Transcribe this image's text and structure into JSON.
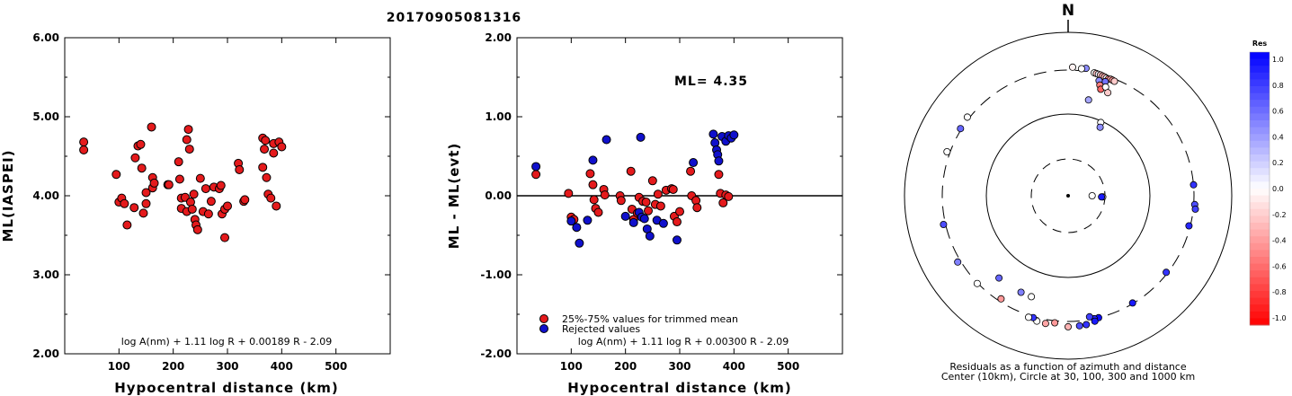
{
  "title": "20170905081316",
  "compass_label": "N",
  "panel1": {
    "ylabel": "ML(IASPEI)",
    "xlabel": "Hypocentral distance (km)",
    "formula": "log A(nm) + 1.11 log R + 0.00189 R - 2.09",
    "y_ticks": [
      "6.00",
      "5.00",
      "4.00",
      "3.00",
      "2.00"
    ],
    "x_ticks": [
      "100",
      "200",
      "300",
      "400",
      "500"
    ]
  },
  "panel2": {
    "ylabel": "ML - ML(evt)",
    "xlabel": "Hypocentral distance (km)",
    "ml_text": "ML= 4.35",
    "legend_trimmed": "25%-75% values for trimmed mean",
    "legend_rejected": "Rejected values",
    "formula": "log A(nm) + 1.11 log R + 0.00300 R - 2.09",
    "y_ticks": [
      "2.00",
      "1.00",
      "0.00",
      "-1.00",
      "-2.00"
    ],
    "x_ticks": [
      "100",
      "200",
      "300",
      "400",
      "500"
    ]
  },
  "panel3": {
    "caption1": "Residuals as a function of azimuth and distance",
    "caption2": "Center (10km), Circle at 30, 100, 300 and 1000 km",
    "colorbar_title": "Res",
    "colorbar_labels": [
      "1.0",
      "0.8",
      "0.6",
      "0.4",
      "0.2",
      "0.0",
      "-0.2",
      "-0.4",
      "-0.6",
      "-0.8",
      "-1.0"
    ]
  },
  "colors": {
    "trimmed": "#e41a1c",
    "rejected": "#1010cc"
  },
  "chart_data": [
    {
      "type": "scatter",
      "title": "20170905081316",
      "xlabel": "Hypocentral distance (km)",
      "ylabel": "ML(IASPEI)",
      "xlim": [
        0,
        600
      ],
      "ylim": [
        2.0,
        6.0
      ],
      "series": [
        {
          "x": [
            35,
            35,
            95,
            100,
            105,
            110,
            115,
            128,
            130,
            135,
            140,
            142,
            145,
            150,
            150,
            160,
            162,
            162,
            165,
            190,
            192,
            210,
            212,
            215,
            215,
            222,
            225,
            225,
            228,
            230,
            232,
            235,
            238,
            240,
            242,
            245,
            250,
            255,
            260,
            265,
            270,
            275,
            285,
            288,
            290,
            295,
            295,
            300,
            320,
            322,
            330,
            332,
            365,
            365,
            368,
            370,
            372,
            375,
            380,
            385,
            385,
            390,
            395,
            400
          ],
          "y": [
            4.68,
            4.58,
            4.27,
            3.92,
            3.97,
            3.9,
            3.63,
            3.85,
            4.48,
            4.63,
            4.65,
            4.35,
            3.78,
            4.04,
            3.9,
            4.87,
            4.1,
            4.23,
            4.16,
            4.14,
            4.14,
            4.43,
            4.21,
            3.84,
            3.97,
            3.98,
            3.8,
            4.71,
            4.84,
            4.59,
            3.92,
            3.83,
            4.02,
            3.7,
            3.63,
            3.57,
            4.22,
            3.8,
            4.09,
            3.77,
            3.93,
            4.11,
            4.09,
            4.13,
            3.77,
            3.47,
            3.83,
            3.87,
            4.41,
            4.33,
            3.93,
            3.95,
            4.73,
            4.36,
            4.59,
            4.7,
            4.23,
            4.02,
            3.97,
            4.54,
            4.66,
            3.87,
            4.68,
            4.62
          ]
        }
      ]
    },
    {
      "type": "scatter",
      "xlabel": "Hypocentral distance (km)",
      "ylabel": "ML - ML(evt)",
      "xlim": [
        0,
        600
      ],
      "ylim": [
        -2.0,
        2.0
      ],
      "series": [
        {
          "name": "25%-75% values for trimmed mean",
          "x": [
            35,
            95,
            100,
            105,
            135,
            140,
            142,
            145,
            150,
            160,
            162,
            190,
            192,
            210,
            212,
            215,
            222,
            225,
            232,
            238,
            242,
            250,
            255,
            260,
            265,
            275,
            285,
            288,
            290,
            295,
            300,
            320,
            322,
            330,
            332,
            372,
            375,
            380,
            385,
            390
          ],
          "y": [
            0.27,
            0.03,
            -0.27,
            -0.3,
            0.28,
            0.14,
            -0.05,
            -0.16,
            -0.21,
            0.08,
            0.01,
            0.0,
            -0.06,
            0.31,
            -0.17,
            -0.3,
            -0.22,
            -0.02,
            -0.07,
            -0.08,
            -0.19,
            0.19,
            -0.11,
            0.02,
            -0.13,
            0.07,
            0.09,
            0.08,
            -0.26,
            -0.33,
            -0.2,
            0.31,
            0.0,
            -0.06,
            -0.15,
            0.27,
            0.03,
            -0.09,
            0.01,
            -0.01
          ]
        },
        {
          "name": "Rejected values",
          "x": [
            35,
            100,
            110,
            115,
            130,
            140,
            165,
            200,
            215,
            225,
            228,
            230,
            235,
            240,
            245,
            258,
            270,
            295,
            325,
            362,
            365,
            368,
            370,
            372,
            378,
            385,
            390,
            395,
            400
          ],
          "y": [
            0.37,
            -0.32,
            -0.4,
            -0.6,
            -0.31,
            0.45,
            0.71,
            -0.26,
            -0.34,
            -0.21,
            0.74,
            -0.27,
            -0.29,
            -0.42,
            -0.51,
            -0.31,
            -0.35,
            -0.56,
            0.42,
            0.78,
            0.67,
            0.58,
            0.52,
            0.44,
            0.75,
            0.69,
            0.76,
            0.73,
            0.77
          ]
        }
      ],
      "annotations": [
        "ML= 4.35"
      ]
    },
    {
      "type": "scatter",
      "title": "Residuals as a function of azimuth and distance",
      "xlabel": "",
      "ylabel": "",
      "rings_km": [
        30,
        100,
        300,
        1000
      ],
      "colorbar": {
        "title": "Res",
        "min": -1.0,
        "max": 1.0
      },
      "series": [
        {
          "name": "",
          "azimuth_deg": [
            12,
            13,
            14,
            15,
            16,
            17,
            18,
            19,
            20,
            21,
            22,
            18,
            15,
            16,
            17,
            19,
            21,
            8,
            6,
            2,
            24,
            12,
            25,
            90,
            92,
            92,
            85,
            94,
            96,
            104,
            128,
            149,
            166,
            168,
            168,
            170,
            172,
            175,
            180,
            186,
            190,
            194,
            196,
            198,
            200,
            206,
            213,
            220,
            226,
            239,
            257,
            290,
            302,
            308
          ],
          "distance_km": [
            300,
            298,
            296,
            295,
            292,
            290,
            285,
            284,
            288,
            286,
            284,
            260,
            255,
            230,
            210,
            230,
            205,
            330,
            320,
            330,
            96,
            150,
            85,
            20,
            28,
            27,
            300,
            310,
            320,
            290,
            290,
            295,
            300,
            300,
            325,
            280,
            345,
            350,
            355,
            320,
            340,
            335,
            310,
            320,
            190,
            190,
            280,
            190,
            305,
            330,
            320,
            330,
            310,
            320
          ],
          "residual": [
            0.0,
            -0.25,
            0.05,
            -0.2,
            -0.3,
            -0.3,
            0.0,
            -0.45,
            -0.35,
            -0.4,
            -0.2,
            0.55,
            0.45,
            -0.5,
            -0.6,
            0.0,
            -0.2,
            0.45,
            0.0,
            -0.05,
            0.0,
            0.35,
            0.45,
            0.0,
            -0.05,
            0.9,
            0.8,
            0.7,
            0.75,
            0.85,
            0.8,
            0.9,
            0.95,
            0.85,
            0.9,
            0.75,
            0.8,
            0.7,
            -0.3,
            -0.4,
            -0.35,
            0.0,
            0.8,
            0.0,
            0.0,
            0.5,
            -0.4,
            0.6,
            0.0,
            0.5,
            0.7,
            0.0,
            0.6,
            0.0
          ]
        }
      ]
    }
  ]
}
